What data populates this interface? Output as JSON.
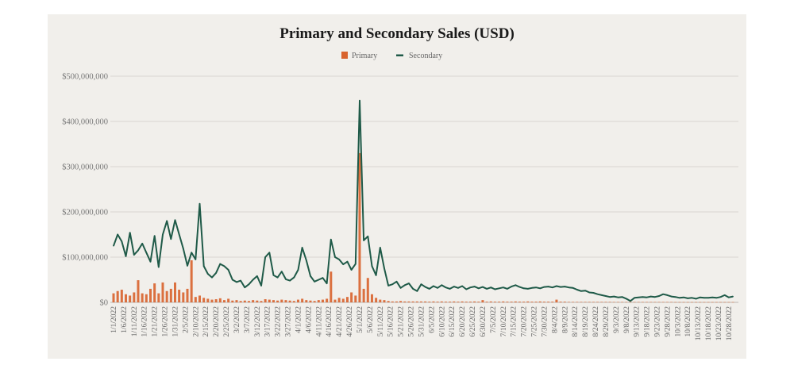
{
  "chart_data": {
    "type": "bar+line",
    "title": "Primary and Secondary Sales (USD)",
    "xlabel": "",
    "ylabel": "",
    "ylim": [
      0,
      500000000
    ],
    "y_ticks": [
      0,
      100000000,
      200000000,
      300000000,
      400000000,
      500000000
    ],
    "y_tick_labels": [
      "$0",
      "$100,000,000",
      "$200,000,000",
      "$300,000,000",
      "$400,000,000",
      "$500,000,000"
    ],
    "grid": "horizontal",
    "legend_placement": "top-center",
    "colors": {
      "Primary": "#d8622c",
      "Secondary": "#1f5a48",
      "background": "#f1efeb",
      "grid": "#d9d6d1"
    },
    "x_tick_labels": [
      "1/1/2022",
      "1/6/2022",
      "1/11/2022",
      "1/16/2022",
      "1/21/2022",
      "1/26/2022",
      "1/31/2022",
      "2/5/2022",
      "2/10/2022",
      "2/15/2022",
      "2/20/2022",
      "2/25/2022",
      "3/2/2022",
      "3/7/2022",
      "3/12/2022",
      "3/17/2022",
      "3/22/2022",
      "3/27/2022",
      "4/1/2022",
      "4/6/2022",
      "4/11/2022",
      "4/16/2022",
      "4/21/2022",
      "4/26/2022",
      "5/1/2022",
      "5/6/2022",
      "5/11/2022",
      "5/16/2022",
      "5/21/2022",
      "5/26/2022",
      "5/31/2022",
      "6/5/2022",
      "6/10/2022",
      "6/15/2022",
      "6/20/2022",
      "6/25/2022",
      "6/30/2022",
      "7/5/2022",
      "7/10/2022",
      "7/15/2022",
      "7/20/2022",
      "7/25/2022",
      "7/30/2022",
      "8/4/2022",
      "8/9/2022",
      "8/14/2022",
      "8/19/2022",
      "8/24/2022",
      "8/29/2022",
      "9/3/2022",
      "9/8/2022",
      "9/13/2022",
      "9/18/2022",
      "9/23/2022",
      "9/28/2022",
      "10/3/2022",
      "10/8/2022",
      "10/13/2022",
      "10/18/2022",
      "10/23/2022",
      "10/28/2022"
    ],
    "x": [
      "1/1/2022",
      "1/3/2022",
      "1/5/2022",
      "1/7/2022",
      "1/9/2022",
      "1/11/2022",
      "1/13/2022",
      "1/15/2022",
      "1/17/2022",
      "1/19/2022",
      "1/21/2022",
      "1/23/2022",
      "1/25/2022",
      "1/27/2022",
      "1/29/2022",
      "1/31/2022",
      "2/2/2022",
      "2/4/2022",
      "2/6/2022",
      "2/8/2022",
      "2/10/2022",
      "2/12/2022",
      "2/14/2022",
      "2/16/2022",
      "2/18/2022",
      "2/20/2022",
      "2/22/2022",
      "2/24/2022",
      "2/26/2022",
      "2/28/2022",
      "3/2/2022",
      "3/4/2022",
      "3/6/2022",
      "3/8/2022",
      "3/10/2022",
      "3/12/2022",
      "3/14/2022",
      "3/16/2022",
      "3/18/2022",
      "3/20/2022",
      "3/22/2022",
      "3/24/2022",
      "3/26/2022",
      "3/28/2022",
      "3/30/2022",
      "4/1/2022",
      "4/3/2022",
      "4/5/2022",
      "4/7/2022",
      "4/9/2022",
      "4/11/2022",
      "4/13/2022",
      "4/15/2022",
      "4/17/2022",
      "4/19/2022",
      "4/21/2022",
      "4/23/2022",
      "4/25/2022",
      "4/27/2022",
      "4/29/2022",
      "5/1/2022",
      "5/3/2022",
      "5/5/2022",
      "5/7/2022",
      "5/9/2022",
      "5/11/2022",
      "5/13/2022",
      "5/15/2022",
      "5/17/2022",
      "5/19/2022",
      "5/21/2022",
      "5/23/2022",
      "5/25/2022",
      "5/27/2022",
      "5/29/2022",
      "5/31/2022",
      "6/2/2022",
      "6/4/2022",
      "6/6/2022",
      "6/8/2022",
      "6/10/2022",
      "6/12/2022",
      "6/14/2022",
      "6/16/2022",
      "6/18/2022",
      "6/20/2022",
      "6/22/2022",
      "6/24/2022",
      "6/26/2022",
      "6/28/2022",
      "6/30/2022",
      "7/2/2022",
      "7/4/2022",
      "7/6/2022",
      "7/8/2022",
      "7/10/2022",
      "7/12/2022",
      "7/14/2022",
      "7/16/2022",
      "7/18/2022",
      "7/20/2022",
      "7/22/2022",
      "7/24/2022",
      "7/26/2022",
      "7/28/2022",
      "7/30/2022",
      "8/1/2022",
      "8/3/2022",
      "8/5/2022",
      "8/7/2022",
      "8/9/2022",
      "8/11/2022",
      "8/13/2022",
      "8/15/2022",
      "8/17/2022",
      "8/19/2022",
      "8/21/2022",
      "8/23/2022",
      "8/25/2022",
      "8/27/2022",
      "8/29/2022",
      "8/31/2022",
      "9/2/2022",
      "9/4/2022",
      "9/6/2022",
      "9/8/2022",
      "9/10/2022",
      "9/12/2022",
      "9/14/2022",
      "9/16/2022",
      "9/18/2022",
      "9/20/2022",
      "9/22/2022",
      "9/24/2022",
      "9/26/2022",
      "9/28/2022",
      "9/30/2022",
      "10/2/2022",
      "10/4/2022",
      "10/6/2022",
      "10/8/2022",
      "10/10/2022",
      "10/12/2022",
      "10/14/2022",
      "10/16/2022",
      "10/18/2022",
      "10/20/2022",
      "10/22/2022",
      "10/24/2022",
      "10/26/2022",
      "10/28/2022",
      "10/30/2022"
    ],
    "series": [
      {
        "name": "Primary",
        "type": "bar",
        "values": [
          20000000,
          25000000,
          28000000,
          18000000,
          15000000,
          22000000,
          49000000,
          20000000,
          18000000,
          30000000,
          42000000,
          20000000,
          44000000,
          25000000,
          30000000,
          44000000,
          28000000,
          22000000,
          30000000,
          93000000,
          12000000,
          15000000,
          10000000,
          8000000,
          6000000,
          7000000,
          9000000,
          5000000,
          8000000,
          4000000,
          5000000,
          3000000,
          4000000,
          3000000,
          5000000,
          4000000,
          3000000,
          7000000,
          6000000,
          5000000,
          4000000,
          6000000,
          5000000,
          4000000,
          3000000,
          6000000,
          8000000,
          5000000,
          4000000,
          3000000,
          5000000,
          6000000,
          8000000,
          68000000,
          6000000,
          10000000,
          8000000,
          12000000,
          22000000,
          15000000,
          330000000,
          30000000,
          54000000,
          18000000,
          10000000,
          6000000,
          5000000,
          3000000,
          2000000,
          2000000,
          3000000,
          2000000,
          2000000,
          2000000,
          2000000,
          2000000,
          2000000,
          1500000,
          2000000,
          1500000,
          2000000,
          1500000,
          1500000,
          2000000,
          1500000,
          2000000,
          1500000,
          1500000,
          2000000,
          1500000,
          5000000,
          1500000,
          2000000,
          1500000,
          1500000,
          2000000,
          1500000,
          1500000,
          2000000,
          1500000,
          1500000,
          2000000,
          1500000,
          1500000,
          2000000,
          1500000,
          1500000,
          1500000,
          6000000,
          1500000,
          1500000,
          1000000,
          1000000,
          1000000,
          1000000,
          1000000,
          1000000,
          1000000,
          1000000,
          1000000,
          1000000,
          1000000,
          800000,
          800000,
          800000,
          800000,
          800000,
          800000,
          800000,
          800000,
          800000,
          800000,
          800000,
          800000,
          800000,
          800000,
          800000,
          600000,
          600000,
          600000,
          600000,
          600000,
          600000,
          600000,
          600000,
          600000,
          600000,
          600000,
          600000,
          600000,
          600000,
          600000
        ]
      },
      {
        "name": "Secondary",
        "type": "line",
        "values": [
          125000000,
          150000000,
          135000000,
          102000000,
          154000000,
          105000000,
          115000000,
          130000000,
          110000000,
          90000000,
          147000000,
          78000000,
          150000000,
          180000000,
          140000000,
          182000000,
          150000000,
          119000000,
          81000000,
          110000000,
          95000000,
          218000000,
          80000000,
          63000000,
          55000000,
          65000000,
          85000000,
          80000000,
          72000000,
          50000000,
          45000000,
          48000000,
          33000000,
          40000000,
          50000000,
          58000000,
          37000000,
          100000000,
          110000000,
          60000000,
          55000000,
          68000000,
          51000000,
          48000000,
          55000000,
          72000000,
          121000000,
          93000000,
          58000000,
          46000000,
          50000000,
          54000000,
          42000000,
          139000000,
          100000000,
          95000000,
          84000000,
          90000000,
          72000000,
          85000000,
          446000000,
          137000000,
          146000000,
          80000000,
          60000000,
          121000000,
          75000000,
          37000000,
          40000000,
          46000000,
          32000000,
          38000000,
          42000000,
          30000000,
          25000000,
          40000000,
          34000000,
          30000000,
          36000000,
          32000000,
          38000000,
          33000000,
          30000000,
          35000000,
          32000000,
          36000000,
          29000000,
          33000000,
          35000000,
          31000000,
          34000000,
          30000000,
          33000000,
          29000000,
          31000000,
          33000000,
          30000000,
          35000000,
          38000000,
          34000000,
          31000000,
          30000000,
          32000000,
          33000000,
          31000000,
          34000000,
          35000000,
          33000000,
          36000000,
          34000000,
          35000000,
          33000000,
          32000000,
          28000000,
          25000000,
          26000000,
          22000000,
          21000000,
          18000000,
          16000000,
          14000000,
          12000000,
          13000000,
          11000000,
          12000000,
          8000000,
          3000000,
          10000000,
          11000000,
          12000000,
          11000000,
          13000000,
          12000000,
          14000000,
          18000000,
          16000000,
          13000000,
          12000000,
          10000000,
          11000000,
          9000000,
          10000000,
          8000000,
          11000000,
          10000000,
          10000000,
          11000000,
          10000000,
          12000000,
          16000000,
          11000000,
          13000000
        ]
      }
    ]
  }
}
